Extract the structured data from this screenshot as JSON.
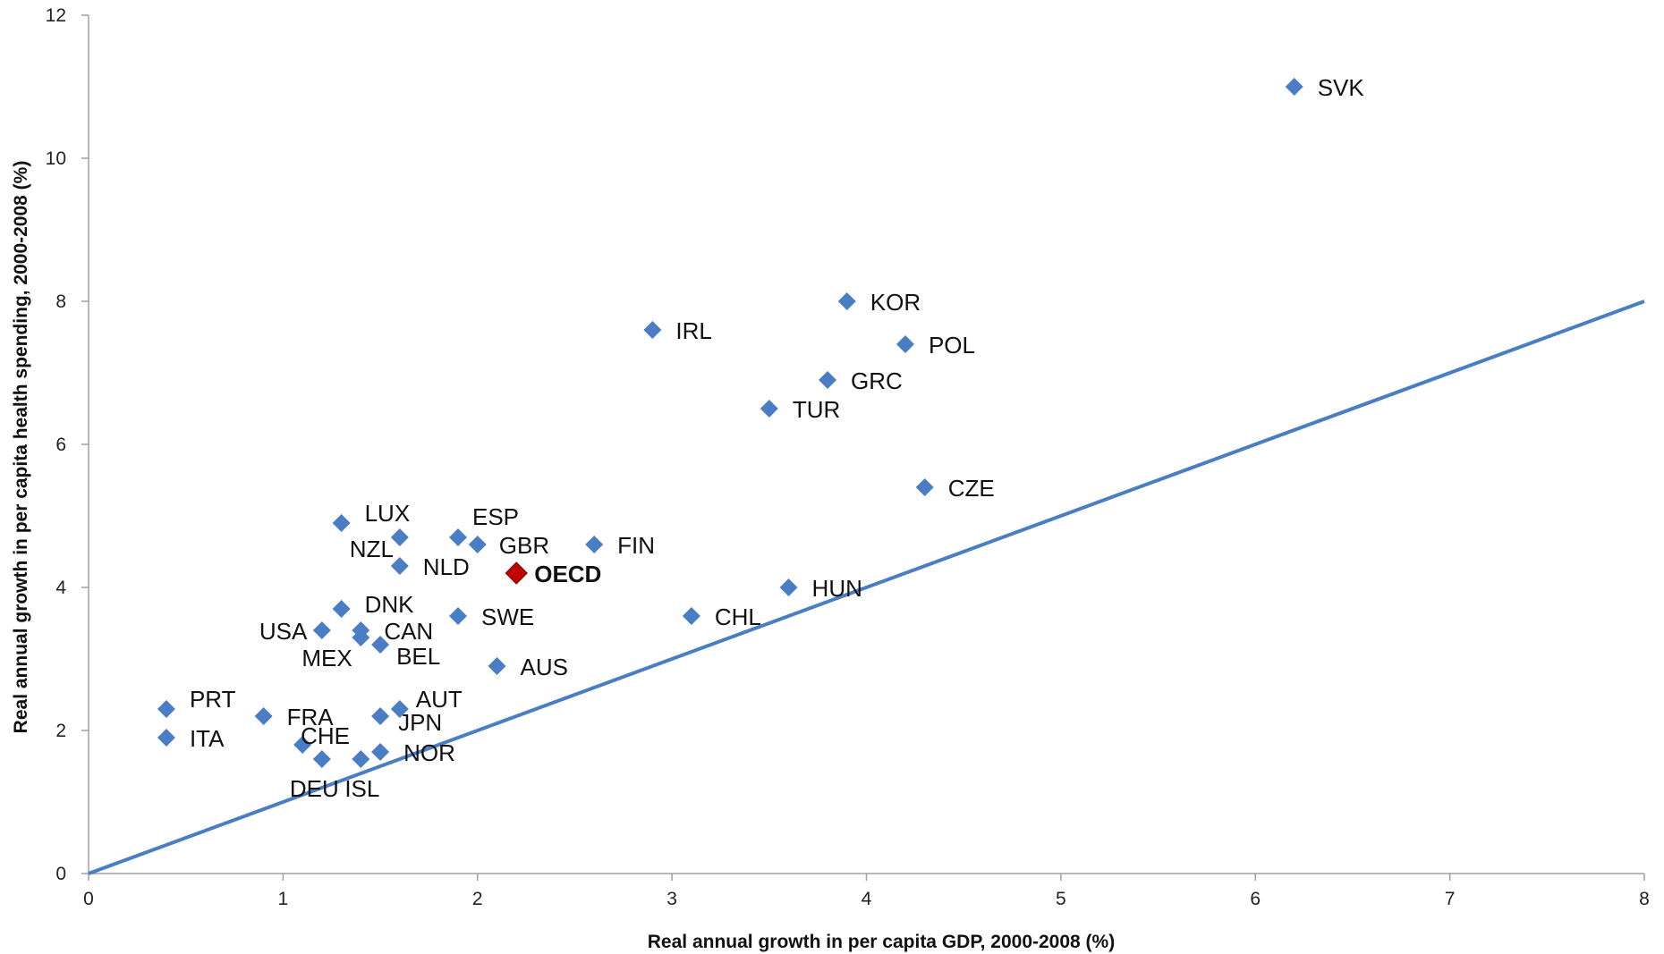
{
  "chart_data": {
    "type": "scatter",
    "xlabel": "Real annual growth in per capita GDP, 2000-2008 (%)",
    "ylabel": "Real annual growth in per capita health spending, 2000-2008 (%)",
    "xlim": [
      0,
      8
    ],
    "ylim": [
      0,
      12
    ],
    "x_ticks": [
      "0",
      "1",
      "2",
      "3",
      "4",
      "5",
      "6",
      "7",
      "8"
    ],
    "y_ticks": [
      "0",
      "2",
      "4",
      "6",
      "8",
      "10",
      "12"
    ],
    "grid": false,
    "colors": {
      "point": "#4a7ec4",
      "highlight": "#c00000",
      "line": "#4a7ec4",
      "axis": "#a0a0a0"
    },
    "reference_line": {
      "from": [
        0,
        0
      ],
      "to": [
        8,
        8
      ]
    },
    "points": [
      {
        "label": "SVK",
        "x": 6.2,
        "y": 11.0
      },
      {
        "label": "KOR",
        "x": 3.9,
        "y": 8.0
      },
      {
        "label": "IRL",
        "x": 2.9,
        "y": 7.6
      },
      {
        "label": "POL",
        "x": 4.2,
        "y": 7.4
      },
      {
        "label": "GRC",
        "x": 3.8,
        "y": 6.9
      },
      {
        "label": "TUR",
        "x": 3.5,
        "y": 6.5
      },
      {
        "label": "CZE",
        "x": 4.3,
        "y": 5.4
      },
      {
        "label": "LUX",
        "x": 1.3,
        "y": 4.9
      },
      {
        "label": "ESP",
        "x": 1.9,
        "y": 4.7
      },
      {
        "label": "NZL",
        "x": 1.6,
        "y": 4.7
      },
      {
        "label": "GBR",
        "x": 2.0,
        "y": 4.6
      },
      {
        "label": "FIN",
        "x": 2.6,
        "y": 4.6
      },
      {
        "label": "NLD",
        "x": 1.6,
        "y": 4.3
      },
      {
        "label": "OECD",
        "x": 2.2,
        "y": 4.2,
        "highlight": true
      },
      {
        "label": "HUN",
        "x": 3.6,
        "y": 4.0
      },
      {
        "label": "DNK",
        "x": 1.3,
        "y": 3.7
      },
      {
        "label": "SWE",
        "x": 1.9,
        "y": 3.6
      },
      {
        "label": "CHL",
        "x": 3.1,
        "y": 3.6
      },
      {
        "label": "USA",
        "x": 1.2,
        "y": 3.4
      },
      {
        "label": "CAN",
        "x": 1.4,
        "y": 3.4
      },
      {
        "label": "MEX",
        "x": 1.4,
        "y": 3.3
      },
      {
        "label": "BEL",
        "x": 1.5,
        "y": 3.2
      },
      {
        "label": "AUS",
        "x": 2.1,
        "y": 2.9
      },
      {
        "label": "PRT",
        "x": 0.4,
        "y": 2.3
      },
      {
        "label": "AUT",
        "x": 1.6,
        "y": 2.3
      },
      {
        "label": "FRA",
        "x": 0.9,
        "y": 2.2
      },
      {
        "label": "JPN",
        "x": 1.5,
        "y": 2.2
      },
      {
        "label": "ITA",
        "x": 0.4,
        "y": 1.9
      },
      {
        "label": "CHE",
        "x": 1.1,
        "y": 1.8
      },
      {
        "label": "NOR",
        "x": 1.5,
        "y": 1.7
      },
      {
        "label": "DEU",
        "x": 1.2,
        "y": 1.6
      },
      {
        "label": "ISL",
        "x": 1.4,
        "y": 1.6
      }
    ]
  }
}
